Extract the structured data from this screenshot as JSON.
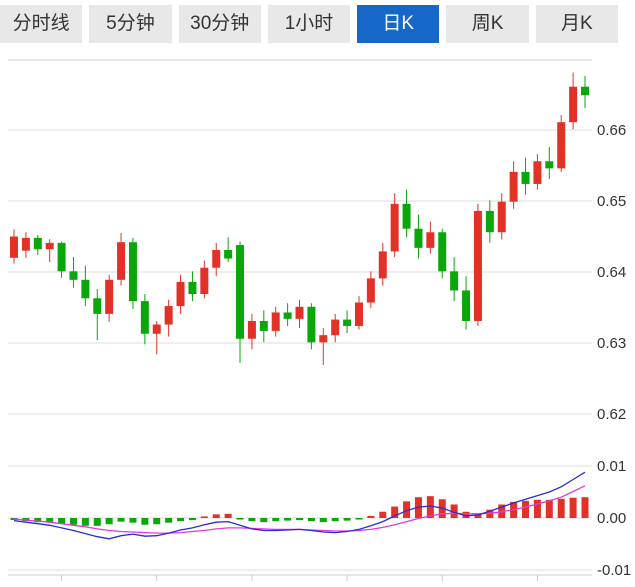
{
  "tabs": {
    "items": [
      {
        "name": "tab-time-line",
        "label": "分时线",
        "active": false
      },
      {
        "name": "tab-5min",
        "label": "5分钟",
        "active": false
      },
      {
        "name": "tab-30min",
        "label": "30分钟",
        "active": false
      },
      {
        "name": "tab-1hour",
        "label": "1小时",
        "active": false
      },
      {
        "name": "tab-daily-k",
        "label": "日K",
        "active": true
      },
      {
        "name": "tab-weekly-k",
        "label": "周K",
        "active": false
      },
      {
        "name": "tab-monthly-k",
        "label": "月K",
        "active": false
      }
    ]
  },
  "colors": {
    "up": "#e23227",
    "down": "#0aa60a",
    "dif_line": "#2b2bd5",
    "dea_line": "#e03ae0",
    "grid": "#dddddd",
    "axis_border": "#cccccc",
    "axis_text": "#333333",
    "tab_bg": "#e8e8e8",
    "tab_active_bg": "#1567c8",
    "tab_text": "#333333",
    "tab_active_text": "#ffffff"
  },
  "chart_data": {
    "type": "candlestick",
    "subpanels": [
      "price",
      "macd"
    ],
    "legend": "none",
    "grid": "horizontal-only",
    "main_axis": {
      "side": "right",
      "range": [
        0.615,
        0.67
      ],
      "ticks": [
        {
          "v": 0.66,
          "label": "0.66"
        },
        {
          "v": 0.65,
          "label": "0.65"
        },
        {
          "v": 0.64,
          "label": "0.64"
        },
        {
          "v": 0.63,
          "label": "0.63"
        },
        {
          "v": 0.62,
          "label": "0.62"
        }
      ]
    },
    "macd_axis": {
      "side": "right",
      "range": [
        -0.012,
        0.012
      ],
      "ticks": [
        {
          "v": 0.01,
          "label": "0.01"
        },
        {
          "v": 0.0,
          "label": "0.00"
        },
        {
          "v": -0.01,
          "label": "-0.01"
        }
      ]
    },
    "candles_ohlc": [
      [
        0.642,
        0.646,
        0.6412,
        0.645
      ],
      [
        0.643,
        0.6456,
        0.642,
        0.6448
      ],
      [
        0.6448,
        0.6452,
        0.6424,
        0.6432
      ],
      [
        0.6432,
        0.6446,
        0.6414,
        0.6441
      ],
      [
        0.6441,
        0.6443,
        0.6392,
        0.6401
      ],
      [
        0.6401,
        0.6421,
        0.6378,
        0.6389
      ],
      [
        0.6389,
        0.6409,
        0.6352,
        0.6363
      ],
      [
        0.6363,
        0.6376,
        0.6304,
        0.6341
      ],
      [
        0.6341,
        0.6396,
        0.633,
        0.6389
      ],
      [
        0.6389,
        0.6455,
        0.6381,
        0.6442
      ],
      [
        0.6442,
        0.6448,
        0.6348,
        0.6359
      ],
      [
        0.6359,
        0.6369,
        0.6298,
        0.6313
      ],
      [
        0.6313,
        0.6331,
        0.6284,
        0.6326
      ],
      [
        0.6326,
        0.6361,
        0.6309,
        0.6352
      ],
      [
        0.6352,
        0.6396,
        0.6341,
        0.6386
      ],
      [
        0.6386,
        0.6401,
        0.6359,
        0.6369
      ],
      [
        0.6369,
        0.6416,
        0.6363,
        0.6406
      ],
      [
        0.6406,
        0.6441,
        0.6394,
        0.6431
      ],
      [
        0.6431,
        0.6449,
        0.6414,
        0.6419
      ],
      [
        0.6438,
        0.6443,
        0.6272,
        0.6306
      ],
      [
        0.6306,
        0.6341,
        0.6291,
        0.6331
      ],
      [
        0.6331,
        0.6346,
        0.6301,
        0.6317
      ],
      [
        0.6317,
        0.6351,
        0.6309,
        0.6343
      ],
      [
        0.6343,
        0.6356,
        0.6324,
        0.6334
      ],
      [
        0.6334,
        0.6361,
        0.6321,
        0.6351
      ],
      [
        0.6351,
        0.6356,
        0.6291,
        0.6301
      ],
      [
        0.6301,
        0.6321,
        0.6269,
        0.6311
      ],
      [
        0.6311,
        0.6341,
        0.6301,
        0.6333
      ],
      [
        0.6333,
        0.6346,
        0.6314,
        0.6324
      ],
      [
        0.6324,
        0.6366,
        0.6319,
        0.6357
      ],
      [
        0.6357,
        0.6401,
        0.6349,
        0.6391
      ],
      [
        0.6391,
        0.6441,
        0.6381,
        0.6429
      ],
      [
        0.6429,
        0.6511,
        0.6421,
        0.6496
      ],
      [
        0.6496,
        0.6516,
        0.6449,
        0.6461
      ],
      [
        0.6461,
        0.6481,
        0.6419,
        0.6434
      ],
      [
        0.6434,
        0.6471,
        0.6426,
        0.6456
      ],
      [
        0.6456,
        0.6461,
        0.6391,
        0.6401
      ],
      [
        0.6401,
        0.6421,
        0.6359,
        0.6374
      ],
      [
        0.6374,
        0.6394,
        0.6319,
        0.6331
      ],
      [
        0.6331,
        0.6496,
        0.6324,
        0.6486
      ],
      [
        0.6486,
        0.6501,
        0.6441,
        0.6456
      ],
      [
        0.6456,
        0.6511,
        0.6446,
        0.6499
      ],
      [
        0.6499,
        0.6556,
        0.6489,
        0.6541
      ],
      [
        0.6541,
        0.6561,
        0.6509,
        0.6524
      ],
      [
        0.6524,
        0.6566,
        0.6516,
        0.6556
      ],
      [
        0.6556,
        0.6576,
        0.6531,
        0.6546
      ],
      [
        0.6546,
        0.6621,
        0.6541,
        0.6611
      ],
      [
        0.6611,
        0.6681,
        0.6601,
        0.6661
      ],
      [
        0.6661,
        0.6676,
        0.6631,
        0.6649
      ]
    ],
    "macd": {
      "hist": [
        -0.0004,
        -0.0006,
        -0.0008,
        -0.0009,
        -0.0011,
        -0.0013,
        -0.0015,
        -0.0015,
        -0.0012,
        -0.0007,
        -0.0009,
        -0.0013,
        -0.0012,
        -0.0009,
        -0.0006,
        -0.0004,
        0.0003,
        0.0007,
        0.0008,
        -0.0003,
        -0.0006,
        -0.0008,
        -0.0006,
        -0.0005,
        -0.0004,
        -0.0006,
        -0.0008,
        -0.0006,
        -0.0005,
        -0.0003,
        0.0004,
        0.0012,
        0.0022,
        0.0032,
        0.004,
        0.0042,
        0.0036,
        0.0026,
        0.0012,
        0.0008,
        0.0016,
        0.0026,
        0.0031,
        0.0033,
        0.0035,
        0.0035,
        0.0037,
        0.0039,
        0.004
      ],
      "dif": [
        -0.0005,
        -0.0008,
        -0.0011,
        -0.0014,
        -0.0019,
        -0.0024,
        -0.003,
        -0.0036,
        -0.004,
        -0.0034,
        -0.0031,
        -0.0035,
        -0.0034,
        -0.0029,
        -0.0023,
        -0.0019,
        -0.0013,
        -0.0008,
        -0.0007,
        -0.0014,
        -0.0021,
        -0.0024,
        -0.0024,
        -0.0023,
        -0.0022,
        -0.0024,
        -0.0027,
        -0.0028,
        -0.0026,
        -0.0022,
        -0.0015,
        -0.0007,
        0.0004,
        0.0014,
        0.0021,
        0.0023,
        0.0019,
        0.0011,
        0.0004,
        0.0006,
        0.0013,
        0.0021,
        0.0029,
        0.0036,
        0.0043,
        0.005,
        0.006,
        0.0074,
        0.0088
      ],
      "dea": [
        -0.0002,
        -0.0004,
        -0.0006,
        -0.0008,
        -0.0011,
        -0.0014,
        -0.0017,
        -0.0021,
        -0.0024,
        -0.0026,
        -0.0027,
        -0.0028,
        -0.0029,
        -0.0029,
        -0.0028,
        -0.0026,
        -0.0024,
        -0.0021,
        -0.0019,
        -0.0019,
        -0.002,
        -0.0021,
        -0.0022,
        -0.0022,
        -0.0022,
        -0.0023,
        -0.0024,
        -0.0025,
        -0.0025,
        -0.0024,
        -0.0022,
        -0.0018,
        -0.0013,
        -0.0007,
        -0.0001,
        0.0004,
        0.0008,
        0.0009,
        0.0008,
        0.0008,
        0.0009,
        0.0012,
        0.0016,
        0.0021,
        0.0027,
        0.0033,
        0.004,
        0.0051,
        0.0062
      ]
    }
  }
}
